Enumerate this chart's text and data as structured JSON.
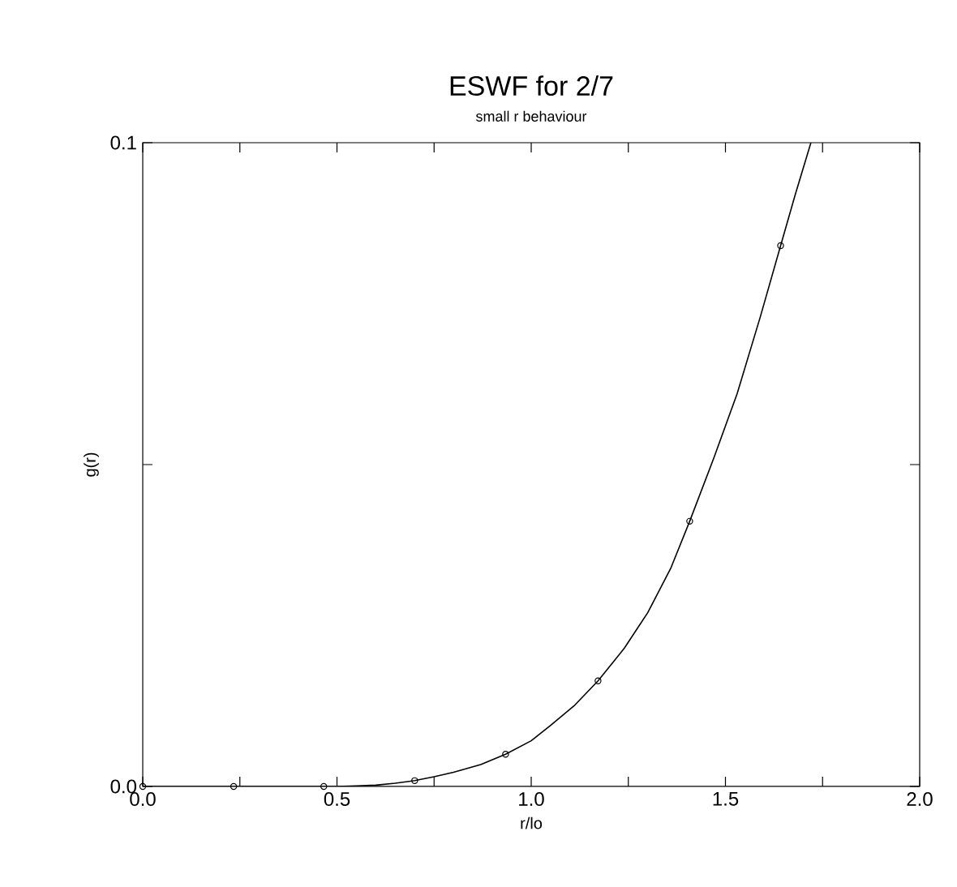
{
  "chart_data": {
    "type": "line",
    "title": "ESWF for 2/7",
    "subtitle": "small r behaviour",
    "xlabel": "r/lo",
    "ylabel": "g(r)",
    "xlim": [
      0,
      2
    ],
    "ylim": [
      0,
      0.1
    ],
    "xticks": [
      {
        "value": 0,
        "label": "0.0"
      },
      {
        "value": 0.25,
        "label": null
      },
      {
        "value": 0.5,
        "label": "0.5"
      },
      {
        "value": 0.75,
        "label": null
      },
      {
        "value": 1,
        "label": "1.0"
      },
      {
        "value": 1.25,
        "label": null
      },
      {
        "value": 1.5,
        "label": "1.5"
      },
      {
        "value": 1.75,
        "label": null
      },
      {
        "value": 2,
        "label": "2.0"
      }
    ],
    "yticks": [
      {
        "value": 0,
        "label": "0.0"
      },
      {
        "value": 0.05,
        "label": null
      },
      {
        "value": 0.1,
        "label": "0.1"
      }
    ],
    "grid": false,
    "legend": false,
    "series": [
      {
        "color": "#000000",
        "marker": "none",
        "line_style": "solid",
        "x": [
          0,
          0.5,
          0.55,
          0.6,
          0.65,
          0.7,
          0.75,
          0.8,
          0.87,
          0.934,
          1.0,
          1.05,
          1.11,
          1.172,
          1.24,
          1.3,
          1.36,
          1.408,
          1.47,
          1.53,
          1.59,
          1.642,
          1.68,
          1.72
        ],
        "values": [
          0,
          0,
          0.0001,
          0.0002,
          0.0005,
          0.0009,
          0.0015,
          0.0022,
          0.0034,
          0.005,
          0.0071,
          0.0095,
          0.0125,
          0.0164,
          0.0215,
          0.027,
          0.034,
          0.0412,
          0.051,
          0.061,
          0.073,
          0.084,
          0.092,
          0.1
        ]
      },
      {
        "type": "scatter",
        "color": "#000000",
        "marker": "circle",
        "x": [
          0,
          0.234,
          0.466,
          0.7,
          0.934,
          1.172,
          1.408,
          1.642
        ],
        "values": [
          0,
          0,
          0,
          0.0009,
          0.005,
          0.0164,
          0.0412,
          0.084
        ]
      }
    ]
  }
}
